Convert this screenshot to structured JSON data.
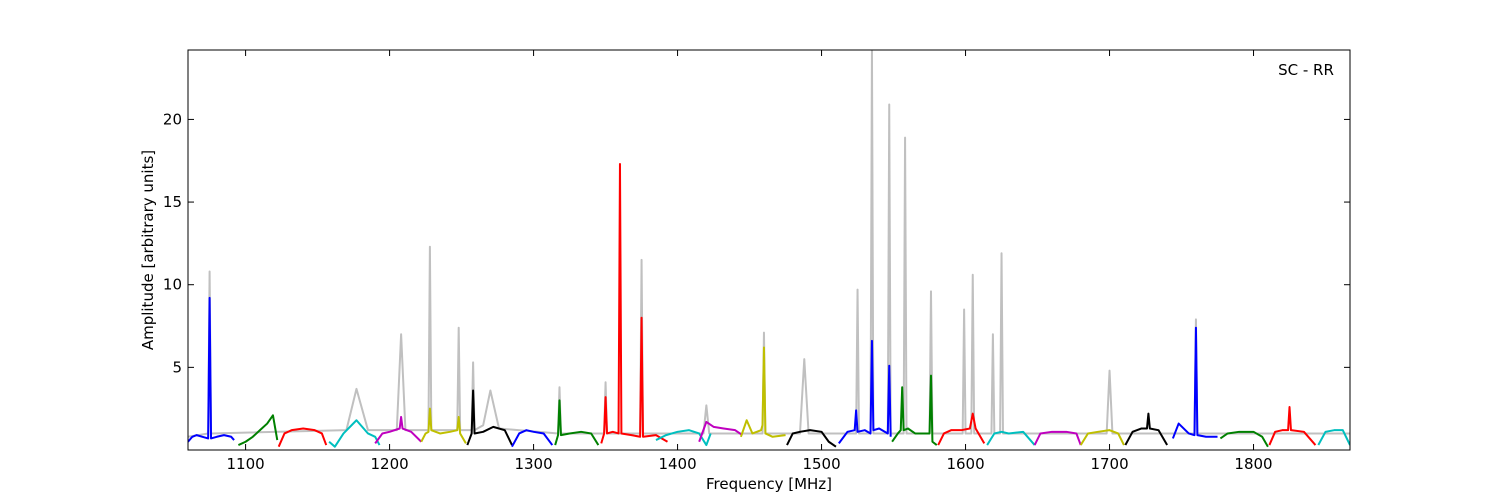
{
  "chart_data": {
    "type": "line",
    "xlabel": "Frequency [MHz]",
    "ylabel": "Amplitude [arbitrary units]",
    "annotation": "SC - RR",
    "xlim": [
      1060,
      1867
    ],
    "ylim": [
      0,
      24.2
    ],
    "xticks": [
      1100,
      1200,
      1300,
      1400,
      1500,
      1600,
      1700,
      1800
    ],
    "yticks": [
      5,
      10,
      15,
      20
    ],
    "series": [
      {
        "color": "#c0c0c0",
        "x": [
          1060,
          1074,
          1075,
          1076,
          1170,
          1177,
          1185,
          1205,
          1208,
          1211,
          1227,
          1228,
          1229,
          1247,
          1248,
          1249,
          1257,
          1258,
          1259,
          1265,
          1270,
          1276,
          1317,
          1318,
          1319,
          1349,
          1350,
          1351,
          1374,
          1375,
          1376,
          1418,
          1420,
          1422,
          1459,
          1460,
          1461,
          1485,
          1488,
          1491,
          1524,
          1525,
          1526,
          1534,
          1535,
          1536,
          1546,
          1547,
          1548,
          1557,
          1558,
          1559,
          1575,
          1576,
          1577,
          1598,
          1599,
          1600,
          1604,
          1605,
          1606,
          1618,
          1619,
          1620,
          1624,
          1625,
          1626,
          1698,
          1700,
          1702,
          1759,
          1760,
          1761,
          1867
        ],
        "values": [
          0.8,
          1.0,
          10.8,
          1.0,
          1.2,
          3.7,
          1.2,
          1.2,
          7.0,
          1.2,
          1.2,
          12.3,
          1.2,
          1.2,
          7.4,
          1.2,
          1.2,
          5.3,
          1.2,
          1.5,
          3.6,
          1.3,
          1.0,
          3.8,
          1.0,
          1.0,
          4.1,
          1.0,
          1.0,
          11.5,
          1.0,
          1.0,
          2.7,
          1.0,
          1.0,
          7.1,
          1.0,
          1.0,
          5.5,
          1.0,
          1.0,
          9.7,
          1.0,
          1.0,
          24.2,
          1.0,
          1.0,
          20.9,
          1.0,
          1.0,
          18.9,
          1.0,
          1.0,
          9.6,
          1.0,
          1.0,
          8.5,
          1.0,
          1.0,
          10.6,
          1.0,
          1.0,
          7.0,
          1.0,
          1.0,
          11.9,
          1.0,
          1.0,
          4.8,
          1.0,
          1.0,
          7.9,
          1.0,
          1.0
        ]
      },
      {
        "color": "#0000ff",
        "x": [
          1060,
          1063,
          1066,
          1070,
          1074,
          1075,
          1076,
          1080,
          1085,
          1090,
          1092
        ],
        "values": [
          0.5,
          0.8,
          0.9,
          0.8,
          0.7,
          9.2,
          0.7,
          0.8,
          0.9,
          0.8,
          0.6
        ]
      },
      {
        "color": "#008000",
        "x": [
          1095,
          1100,
          1105,
          1110,
          1115,
          1119,
          1122
        ],
        "values": [
          0.3,
          0.5,
          0.8,
          1.2,
          1.6,
          2.1,
          0.6
        ]
      },
      {
        "color": "#ff0000",
        "x": [
          1123,
          1127,
          1132,
          1140,
          1148,
          1153,
          1156
        ],
        "values": [
          0.2,
          1.0,
          1.2,
          1.3,
          1.2,
          1.0,
          0.3
        ]
      },
      {
        "color": "#00bfbf",
        "x": [
          1158,
          1162,
          1168,
          1177,
          1185,
          1190,
          1193
        ],
        "values": [
          0.5,
          0.2,
          1.0,
          1.8,
          1.0,
          0.8,
          0.3
        ]
      },
      {
        "color": "#bf00bf",
        "x": [
          1190,
          1195,
          1200,
          1207,
          1208,
          1209,
          1215,
          1222
        ],
        "values": [
          0.4,
          1.0,
          1.1,
          1.3,
          2.0,
          1.3,
          1.1,
          0.5
        ]
      },
      {
        "color": "#bfbf00",
        "x": [
          1222,
          1225,
          1227,
          1228,
          1229,
          1235,
          1242,
          1247,
          1248,
          1249,
          1253
        ],
        "values": [
          0.5,
          1.0,
          1.1,
          2.5,
          1.2,
          1.0,
          1.1,
          1.2,
          2.0,
          1.0,
          0.4
        ]
      },
      {
        "color": "#000000",
        "x": [
          1254,
          1257,
          1258,
          1259,
          1265,
          1272,
          1280,
          1285
        ],
        "values": [
          0.3,
          1.0,
          3.6,
          1.0,
          1.1,
          1.4,
          1.2,
          0.3
        ]
      },
      {
        "color": "#0000ff",
        "x": [
          1285,
          1290,
          1295,
          1300,
          1307,
          1313
        ],
        "values": [
          0.2,
          1.0,
          1.2,
          1.1,
          1.0,
          0.3
        ]
      },
      {
        "color": "#008000",
        "x": [
          1315,
          1317,
          1318,
          1319,
          1325,
          1333,
          1340,
          1345
        ],
        "values": [
          0.3,
          0.9,
          3.0,
          0.9,
          1.0,
          1.1,
          1.0,
          0.3
        ]
      },
      {
        "color": "#ff0000",
        "x": [
          1347,
          1349,
          1350,
          1351,
          1355,
          1359,
          1360,
          1361,
          1368,
          1374,
          1375,
          1376,
          1385,
          1393
        ],
        "values": [
          0.4,
          1.0,
          3.2,
          1.0,
          1.1,
          1.0,
          17.3,
          1.0,
          0.9,
          0.8,
          8.0,
          0.8,
          0.9,
          0.5
        ]
      },
      {
        "color": "#00bfbf",
        "x": [
          1385,
          1392,
          1400,
          1408,
          1415,
          1420,
          1423
        ],
        "values": [
          0.6,
          0.9,
          1.1,
          1.2,
          1.0,
          0.3,
          1.0
        ]
      },
      {
        "color": "#bf00bf",
        "x": [
          1415,
          1420,
          1425,
          1432,
          1440,
          1445
        ],
        "values": [
          0.5,
          1.7,
          1.4,
          1.3,
          1.2,
          0.9
        ]
      },
      {
        "color": "#bfbf00",
        "x": [
          1444,
          1448,
          1452,
          1458,
          1459,
          1460,
          1461,
          1466,
          1475
        ],
        "values": [
          0.8,
          1.8,
          1.0,
          1.2,
          1.5,
          6.2,
          1.0,
          0.8,
          0.9
        ]
      },
      {
        "color": "#000000",
        "x": [
          1476,
          1480,
          1485,
          1492,
          1500,
          1505,
          1510
        ],
        "values": [
          0.3,
          1.0,
          1.1,
          1.2,
          1.1,
          0.5,
          0.2
        ]
      },
      {
        "color": "#0000ff",
        "x": [
          1512,
          1518,
          1523,
          1524,
          1525,
          1530,
          1534,
          1535,
          1536,
          1540,
          1546,
          1547,
          1548
        ],
        "values": [
          0.4,
          1.1,
          1.2,
          2.4,
          1.1,
          1.2,
          1.0,
          6.6,
          1.2,
          1.3,
          1.0,
          5.1,
          0.8
        ]
      },
      {
        "color": "#008000",
        "x": [
          1549,
          1553,
          1555,
          1556,
          1557,
          1560,
          1565,
          1570,
          1575,
          1576,
          1577,
          1580
        ],
        "values": [
          0.5,
          1.0,
          1.2,
          3.8,
          1.2,
          1.3,
          1.0,
          1.0,
          1.0,
          4.5,
          0.5,
          0.3
        ]
      },
      {
        "color": "#ff0000",
        "x": [
          1581,
          1585,
          1590,
          1597,
          1603,
          1605,
          1607,
          1613
        ],
        "values": [
          0.3,
          1.0,
          1.2,
          1.2,
          1.3,
          2.2,
          1.3,
          0.4
        ]
      },
      {
        "color": "#00bfbf",
        "x": [
          1615,
          1620,
          1625,
          1630,
          1640,
          1648
        ],
        "values": [
          0.3,
          1.0,
          1.1,
          1.0,
          1.1,
          0.3
        ]
      },
      {
        "color": "#bf00bf",
        "x": [
          1648,
          1652,
          1660,
          1670,
          1677,
          1680
        ],
        "values": [
          0.3,
          1.0,
          1.1,
          1.1,
          1.0,
          0.3
        ]
      },
      {
        "color": "#bfbf00",
        "x": [
          1680,
          1685,
          1692,
          1700,
          1706,
          1710
        ],
        "values": [
          0.3,
          1.0,
          1.1,
          1.2,
          1.0,
          0.3
        ]
      },
      {
        "color": "#000000",
        "x": [
          1711,
          1716,
          1722,
          1726,
          1727,
          1728,
          1734,
          1740
        ],
        "values": [
          0.3,
          1.1,
          1.3,
          1.3,
          2.2,
          1.3,
          1.2,
          0.3
        ]
      },
      {
        "color": "#0000ff",
        "x": [
          1744,
          1748,
          1755,
          1759,
          1760,
          1761,
          1767,
          1775
        ],
        "values": [
          0.7,
          1.6,
          1.0,
          0.9,
          7.4,
          0.9,
          0.8,
          0.8
        ]
      },
      {
        "color": "#008000",
        "x": [
          1777,
          1782,
          1790,
          1800,
          1806,
          1810
        ],
        "values": [
          0.7,
          1.0,
          1.1,
          1.1,
          0.8,
          0.2
        ]
      },
      {
        "color": "#ff0000",
        "x": [
          1811,
          1815,
          1820,
          1824,
          1825,
          1826,
          1835,
          1843
        ],
        "values": [
          0.3,
          1.1,
          1.2,
          1.2,
          2.6,
          1.2,
          1.1,
          0.3
        ]
      },
      {
        "color": "#00bfbf",
        "x": [
          1845,
          1850,
          1856,
          1862,
          1867
        ],
        "values": [
          0.3,
          1.1,
          1.2,
          1.2,
          0.3
        ]
      }
    ]
  }
}
